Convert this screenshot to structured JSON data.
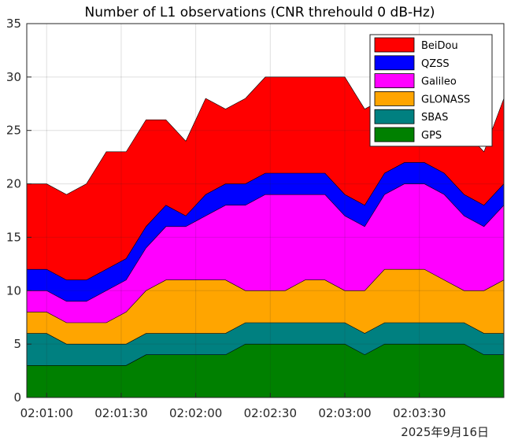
{
  "chart_data": {
    "type": "area",
    "title": "Number of L1 observations (CNR threhould 0 dB-Hz)",
    "date_label": "2025年9月16日",
    "xlabel": "",
    "ylabel": "",
    "ylim": [
      0,
      35
    ],
    "yticks": [
      "0",
      "5",
      "10",
      "15",
      "20",
      "25",
      "30",
      "35"
    ],
    "xlim": [
      "02:00:52",
      "02:04:04"
    ],
    "xticks": [
      "02:01:00",
      "02:01:30",
      "02:02:00",
      "02:02:30",
      "02:03:00",
      "02:03:30"
    ],
    "grid": true,
    "legend_position": "top-right",
    "stacked": true,
    "x": [
      "02:00:52",
      "02:01:00",
      "02:01:08",
      "02:01:16",
      "02:01:24",
      "02:01:32",
      "02:01:40",
      "02:01:48",
      "02:01:56",
      "02:02:04",
      "02:02:12",
      "02:02:20",
      "02:02:28",
      "02:02:36",
      "02:02:44",
      "02:02:52",
      "02:03:00",
      "02:03:08",
      "02:03:16",
      "02:03:24",
      "02:03:32",
      "02:03:40",
      "02:03:48",
      "02:03:56",
      "02:04:04"
    ],
    "series": [
      {
        "name": "GPS",
        "color": "#008000",
        "values": [
          3,
          3,
          3,
          3,
          3,
          3,
          4,
          4,
          4,
          4,
          4,
          5,
          5,
          5,
          5,
          5,
          5,
          4,
          5,
          5,
          5,
          5,
          5,
          4,
          4
        ]
      },
      {
        "name": "SBAS",
        "color": "#008080",
        "values": [
          3,
          3,
          2,
          2,
          2,
          2,
          2,
          2,
          2,
          2,
          2,
          2,
          2,
          2,
          2,
          2,
          2,
          2,
          2,
          2,
          2,
          2,
          2,
          2,
          2
        ]
      },
      {
        "name": "GLONASS",
        "color": "#FFA500",
        "values": [
          2,
          2,
          2,
          2,
          2,
          3,
          4,
          5,
          5,
          5,
          5,
          3,
          3,
          3,
          4,
          4,
          3,
          4,
          5,
          5,
          5,
          4,
          3,
          4,
          5
        ]
      },
      {
        "name": "Galileo",
        "color": "#FF00FF",
        "values": [
          2,
          2,
          2,
          2,
          3,
          3,
          4,
          5,
          5,
          6,
          7,
          8,
          9,
          9,
          8,
          8,
          7,
          6,
          7,
          8,
          8,
          8,
          7,
          6,
          7
        ]
      },
      {
        "name": "QZSS",
        "color": "#0000FF",
        "values": [
          2,
          2,
          2,
          2,
          2,
          2,
          2,
          2,
          1,
          2,
          2,
          2,
          2,
          2,
          2,
          2,
          2,
          2,
          2,
          2,
          2,
          2,
          2,
          2,
          2
        ]
      },
      {
        "name": "BeiDou",
        "color": "#FF0000",
        "values": [
          8,
          8,
          8,
          9,
          11,
          10,
          10,
          8,
          7,
          9,
          7,
          8,
          9,
          9,
          9,
          9,
          11,
          9,
          7,
          6,
          5,
          6,
          6,
          5,
          8
        ]
      }
    ]
  }
}
